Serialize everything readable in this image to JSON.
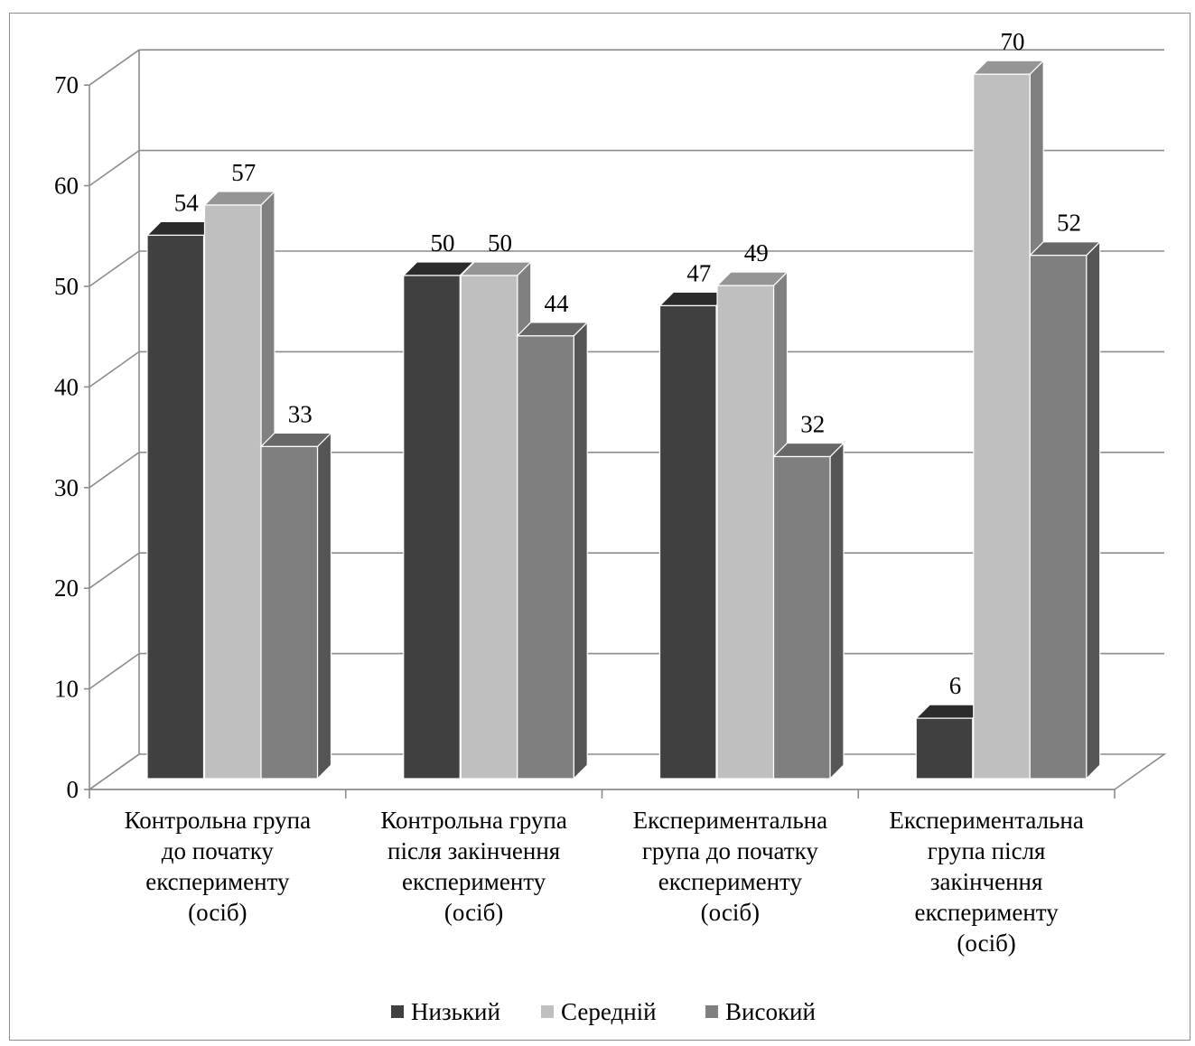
{
  "chart_data": {
    "type": "bar",
    "categories": [
      [
        "Контрольна група",
        "до початку",
        "експерименту",
        "(осіб)"
      ],
      [
        "Контрольна група",
        "після закінчення",
        "експерименту",
        "(осіб)"
      ],
      [
        "Експериментальна",
        "група до початку",
        "експерименту",
        "(осіб)"
      ],
      [
        "Експериментальна",
        "група після",
        "закінчення",
        "експерименту",
        "(осіб)"
      ]
    ],
    "series": [
      {
        "name": "Низький",
        "values": [
          54,
          50,
          47,
          6
        ],
        "color": "#404040",
        "side_color": "#262626",
        "top_color": "#2b2b2b"
      },
      {
        "name": "Середній",
        "values": [
          57,
          50,
          49,
          70
        ],
        "color": "#bfbfbf",
        "side_color": "#808080",
        "top_color": "#959595"
      },
      {
        "name": "Високий",
        "values": [
          33,
          44,
          32,
          52
        ],
        "color": "#7f7f7f",
        "side_color": "#555555",
        "top_color": "#676767"
      }
    ],
    "y_ticks": [
      "0",
      "10",
      "20",
      "30",
      "40",
      "50",
      "60",
      "70"
    ],
    "ylim": [
      0,
      70
    ],
    "grid": true,
    "legend_position": "bottom",
    "style": "3d-clustered-column"
  }
}
